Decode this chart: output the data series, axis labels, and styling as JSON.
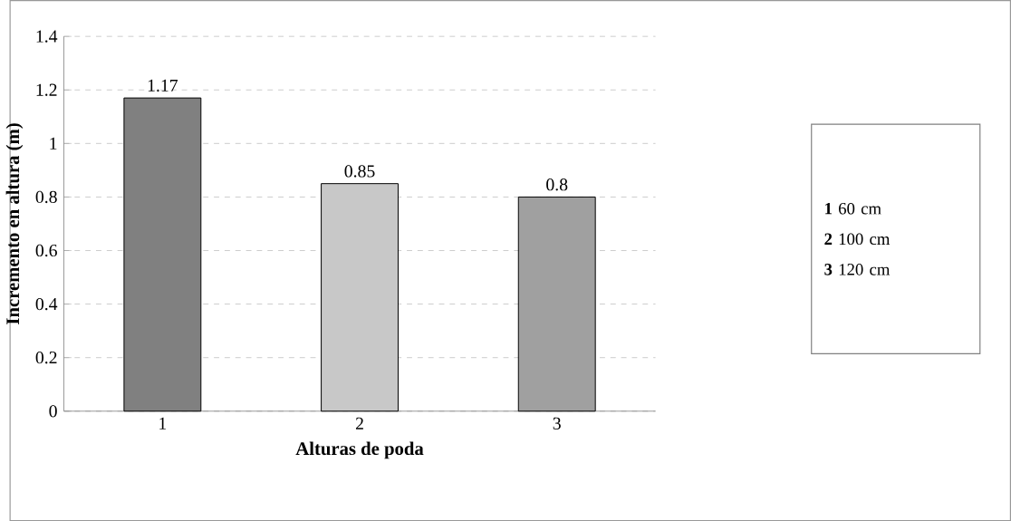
{
  "chart_data": {
    "type": "bar",
    "xlabel": "Alturas de poda",
    "ylabel": "Incremento en altura (m)",
    "categories": [
      "1",
      "2",
      "3"
    ],
    "values": [
      1.17,
      0.85,
      0.8
    ],
    "colors": [
      "#808080",
      "#c8c8c8",
      "#a0a0a0"
    ],
    "ylim": [
      0,
      1.4
    ],
    "yticks": [
      0,
      0.2,
      0.4,
      0.6,
      0.8,
      1,
      1.2,
      1.4
    ],
    "grid": "y",
    "data_labels": true,
    "annotations": [
      "**1** 60 cm",
      "**2** 100 cm",
      "**3** 120 cm"
    ]
  }
}
